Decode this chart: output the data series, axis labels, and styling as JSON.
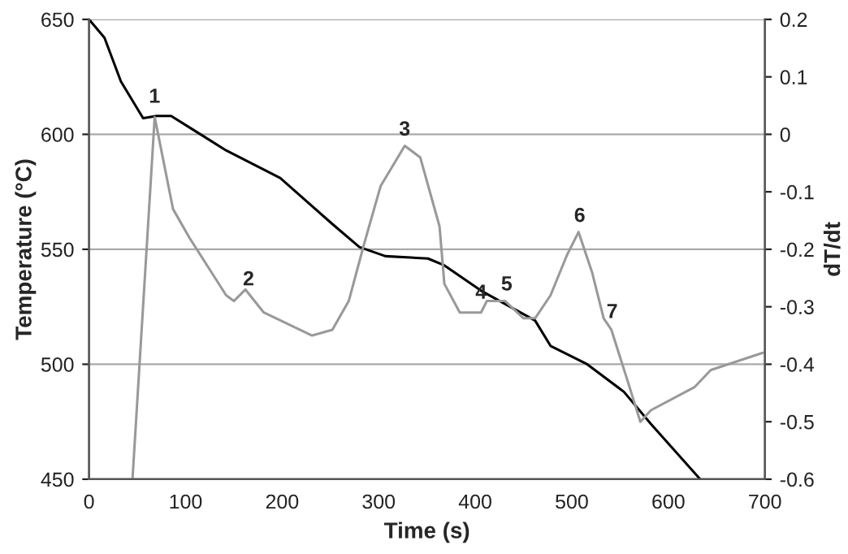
{
  "chart_data": {
    "type": "line",
    "xlabel": "Time (s)",
    "ylabel": "Temperature (°C)",
    "y2label": "dT/dt",
    "xlim": [
      0,
      700
    ],
    "xticks": [
      0,
      100,
      200,
      300,
      400,
      500,
      600,
      700
    ],
    "ylim": [
      450,
      650
    ],
    "yticks": [
      450,
      500,
      550,
      600,
      650
    ],
    "y2lim": [
      -0.6,
      0.2
    ],
    "y2ticks": [
      {
        "value": -0.6,
        "label": "-0.6"
      },
      {
        "value": -0.5,
        "label": "-0.5"
      },
      {
        "value": -0.4,
        "label": "-0.4"
      },
      {
        "value": -0.3,
        "label": "-0.3"
      },
      {
        "value": -0.2,
        "label": "-0.2"
      },
      {
        "value": -0.1,
        "label": "-0.1"
      },
      0,
      0.1,
      0.2
    ],
    "grid": "y",
    "marker": "none",
    "line_style": "solid",
    "series": [
      {
        "color": "#000000",
        "x": [
          0,
          16,
          33,
          56,
          70,
          85,
          104,
          142,
          198,
          252,
          280,
          307,
          351,
          368,
          406,
          462,
          478,
          516,
          554,
          582,
          633
        ],
        "values": [
          650,
          642,
          623,
          607,
          608,
          608,
          603,
          593,
          581,
          561,
          551,
          547,
          546,
          543,
          532,
          519,
          508,
          500,
          488,
          474,
          450
        ]
      },
      {
        "color": "#999999",
        "axis": "y2",
        "x": [
          45,
          68,
          87,
          104,
          142,
          150,
          162,
          181,
          231,
          252,
          269,
          285,
          302,
          327,
          343,
          363,
          368,
          384,
          406,
          412,
          431,
          450,
          462,
          478,
          495,
          507,
          521,
          533,
          541,
          558,
          571,
          582,
          627,
          644,
          698
        ],
        "values": [
          -0.6,
          0.03,
          -0.13,
          -0.18,
          -0.28,
          -0.29,
          -0.27,
          -0.31,
          -0.35,
          -0.34,
          -0.29,
          -0.19,
          -0.09,
          -0.02,
          -0.04,
          -0.16,
          -0.26,
          -0.31,
          -0.31,
          -0.29,
          -0.29,
          -0.32,
          -0.32,
          -0.28,
          -0.21,
          -0.17,
          -0.24,
          -0.32,
          -0.34,
          -0.43,
          -0.5,
          -0.48,
          -0.44,
          -0.41,
          -0.38
        ]
      }
    ],
    "annotations": [
      "1",
      "2",
      "3",
      "4",
      "5",
      "6",
      "7"
    ]
  }
}
